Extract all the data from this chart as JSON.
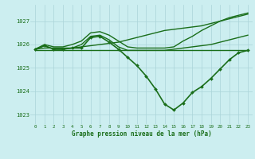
{
  "bg_color": "#cceef0",
  "grid_color": "#aad4d8",
  "line_color": "#1a6e1a",
  "marker_color": "#1a6e1a",
  "xlabel": "Graphe pression niveau de la mer (hPa)",
  "xlabel_color": "#1a6e1a",
  "ylim": [
    1022.6,
    1027.7
  ],
  "xlim": [
    -0.5,
    23.5
  ],
  "yticks": [
    1023,
    1024,
    1025,
    1026,
    1027
  ],
  "xticks": [
    0,
    1,
    2,
    3,
    4,
    5,
    6,
    7,
    8,
    9,
    10,
    11,
    12,
    13,
    14,
    15,
    16,
    17,
    18,
    19,
    20,
    21,
    22,
    23
  ],
  "lines": [
    {
      "x": [
        0,
        1,
        2,
        3,
        4,
        5,
        6,
        7,
        8,
        9,
        10,
        11,
        12,
        13,
        14,
        15,
        16,
        17,
        18,
        19,
        20,
        21,
        22,
        23
      ],
      "y": [
        1025.75,
        1025.75,
        1025.75,
        1025.75,
        1025.75,
        1025.75,
        1025.75,
        1025.75,
        1025.75,
        1025.75,
        1025.75,
        1025.75,
        1025.75,
        1025.75,
        1025.75,
        1025.75,
        1025.75,
        1025.75,
        1025.75,
        1025.75,
        1025.75,
        1025.75,
        1025.75,
        1025.75
      ],
      "has_markers": false,
      "linewidth": 1.0
    },
    {
      "x": [
        0,
        1,
        2,
        3,
        4,
        5,
        6,
        7,
        8,
        9,
        10,
        11,
        12,
        13,
        14,
        15,
        16,
        17,
        18,
        19,
        20,
        21,
        22,
        23
      ],
      "y": [
        1025.8,
        1025.85,
        1025.85,
        1025.85,
        1025.85,
        1025.9,
        1025.95,
        1026.0,
        1026.05,
        1026.1,
        1026.2,
        1026.3,
        1026.4,
        1026.5,
        1026.6,
        1026.65,
        1026.7,
        1026.75,
        1026.8,
        1026.9,
        1027.0,
        1027.1,
        1027.2,
        1027.3
      ],
      "has_markers": false,
      "linewidth": 1.0
    },
    {
      "x": [
        0,
        1,
        2,
        3,
        4,
        5,
        6,
        7,
        8,
        9,
        10,
        11,
        12,
        13,
        14,
        15,
        16,
        17,
        18,
        19,
        20,
        21,
        22,
        23
      ],
      "y": [
        1025.8,
        1026.0,
        1025.9,
        1025.9,
        1026.0,
        1026.15,
        1026.5,
        1026.55,
        1026.4,
        1026.15,
        1025.9,
        1025.85,
        1025.85,
        1025.85,
        1025.85,
        1025.9,
        1026.15,
        1026.35,
        1026.6,
        1026.8,
        1027.0,
        1027.15,
        1027.25,
        1027.35
      ],
      "has_markers": false,
      "linewidth": 1.0
    },
    {
      "x": [
        0,
        1,
        2,
        3,
        4,
        5,
        6,
        7,
        8,
        9,
        10,
        11,
        12,
        13,
        14,
        15,
        16,
        17,
        18,
        19,
        20,
        21,
        22,
        23
      ],
      "y": [
        1025.8,
        1025.95,
        1025.8,
        1025.8,
        1025.85,
        1026.0,
        1026.35,
        1026.4,
        1026.2,
        1025.9,
        1025.75,
        1025.75,
        1025.75,
        1025.75,
        1025.75,
        1025.8,
        1025.85,
        1025.9,
        1025.95,
        1026.0,
        1026.1,
        1026.2,
        1026.3,
        1026.4
      ],
      "has_markers": false,
      "linewidth": 1.0
    },
    {
      "x": [
        0,
        1,
        2,
        3,
        4,
        5,
        6,
        7,
        8,
        9,
        10,
        11,
        12,
        13,
        14,
        15,
        16,
        17,
        18,
        19,
        20,
        21,
        22,
        23
      ],
      "y": [
        1025.8,
        1025.95,
        1025.8,
        1025.8,
        1025.85,
        1025.85,
        1026.3,
        1026.35,
        1026.1,
        1025.8,
        1025.45,
        1025.1,
        1024.65,
        1024.1,
        1023.45,
        1023.2,
        1023.5,
        1023.95,
        1024.2,
        1024.55,
        1024.95,
        1025.35,
        1025.65,
        1025.75
      ],
      "has_markers": true,
      "linewidth": 1.2
    }
  ]
}
